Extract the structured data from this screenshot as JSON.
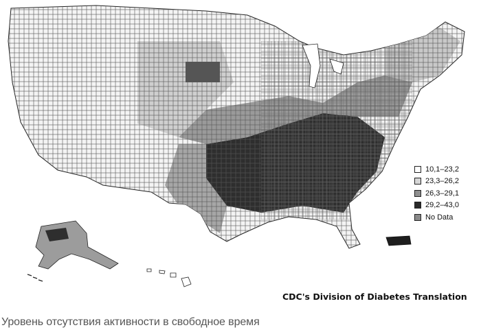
{
  "map": {
    "legend": [
      {
        "label": "10,1–23,2",
        "color": "#ffffff"
      },
      {
        "label": "23,3–26,2",
        "color": "#d6d6d6"
      },
      {
        "label": "26,3–29,1",
        "color": "#8f8f8f"
      },
      {
        "label": "29,2–43,0",
        "color": "#2a2a2a"
      },
      {
        "label": "No Data",
        "color": "#8a8a8a"
      }
    ],
    "credit": "CDC's Division of Diabetes Translation"
  },
  "caption": "Уровень отсутствия активности в свободное время"
}
